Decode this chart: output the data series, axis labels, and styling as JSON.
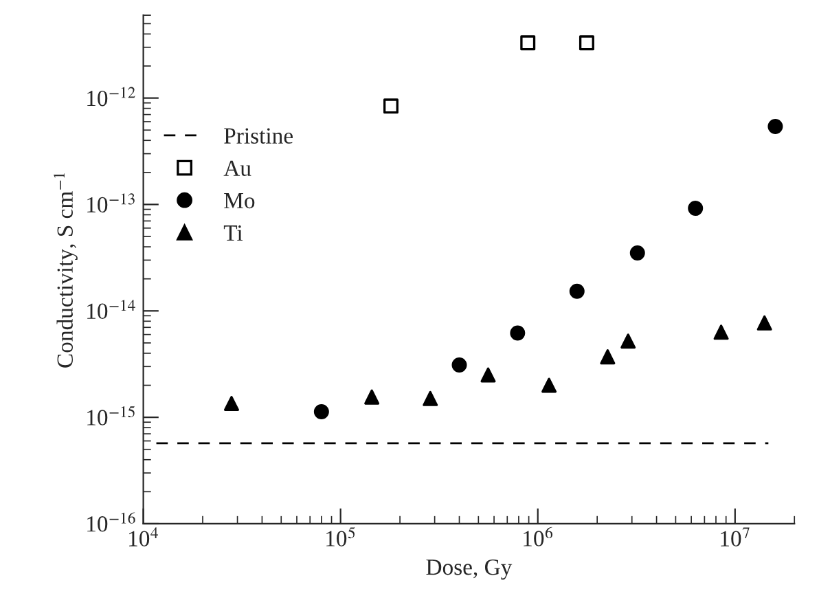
{
  "chart_data": {
    "type": "scatter",
    "xlabel": "Dose, Gy",
    "ylabel": "Conductivity, S cm$^{−1}$",
    "log": "xy",
    "grid": false,
    "legend": "top left",
    "xlim": [
      10000,
      20000000
    ],
    "xticks": [
      {
        "value": 10000,
        "label": "10$^{4}$"
      },
      {
        "value": 100000,
        "label": "10$^{5}$"
      },
      {
        "value": 1000000,
        "label": "10$^{6}$"
      },
      {
        "value": 10000000,
        "label": "10$^{7}$"
      }
    ],
    "ylim": [
      1e-16,
      6e-12
    ],
    "yticks": [
      {
        "value": 1e-16,
        "label": "10$^{−16}$"
      },
      {
        "value": 1e-15,
        "label": "10$^{−15}$"
      },
      {
        "value": 1e-14,
        "label": "10$^{−14}$"
      },
      {
        "value": 1e-13,
        "label": "10$^{−13}$"
      },
      {
        "value": 1e-12,
        "label": "10$^{−12}$"
      }
    ],
    "ref_lines": [
      {
        "axis": "y",
        "value": 5.7e-16,
        "label": "Pristine",
        "color": "#000000",
        "line_style": "dashed"
      }
    ],
    "series": [
      {
        "name": "Au",
        "color": "#ffffff",
        "marker": "square",
        "x": [
          180000,
          890000,
          1770000
        ],
        "values": [
          8.4e-13,
          3.3e-12,
          3.3e-12
        ]
      },
      {
        "name": "Mo",
        "color": "#000000",
        "marker": "circle",
        "x": [
          80000,
          400000,
          790000,
          1580000,
          3200000,
          6300000,
          16000000
        ],
        "values": [
          1.13e-15,
          3.1e-15,
          6.2e-15,
          1.53e-14,
          3.5e-14,
          9.2e-14,
          5.4e-13
        ]
      },
      {
        "name": "Ti",
        "color": "#000000",
        "marker": "triangle",
        "x": [
          28000,
          144000,
          285000,
          560000,
          1140000,
          2260000,
          2870000,
          8500000,
          14100000
        ],
        "values": [
          1.35e-15,
          1.55e-15,
          1.5e-15,
          2.5e-15,
          2e-15,
          3.7e-15,
          5.2e-15,
          6.3e-15,
          7.7e-15
        ]
      }
    ]
  }
}
